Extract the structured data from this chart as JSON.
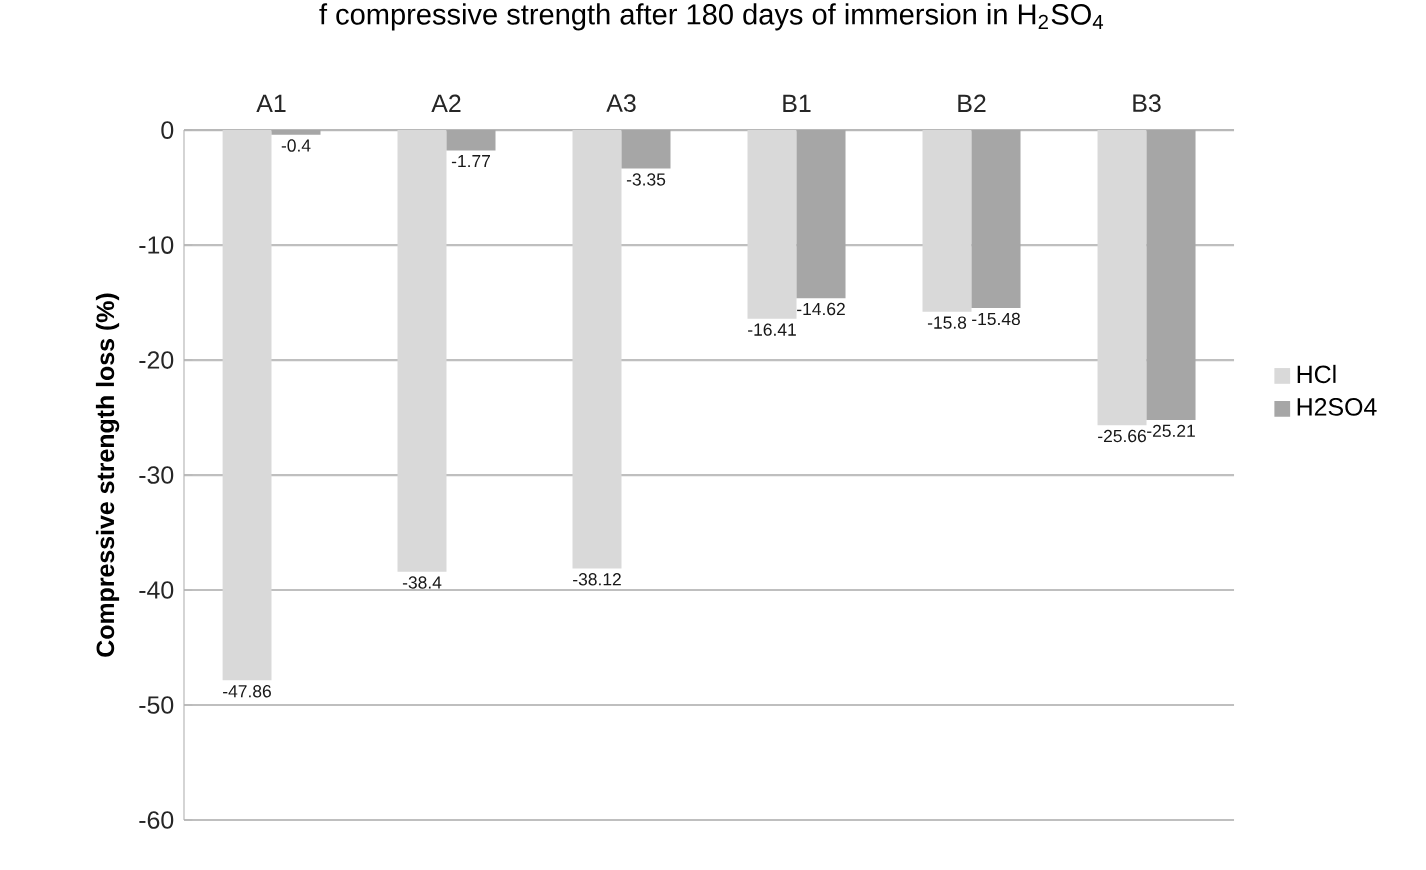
{
  "chart_data": {
    "type": "bar",
    "title": "f compressive strength after 180 days of immersion in H$_{2}$SO$_{4}$",
    "ylabel": "**Compressive strength loss (%)**",
    "categories": [
      "A1",
      "A2",
      "A3",
      "B1",
      "B2",
      "B3"
    ],
    "series": [
      {
        "name": "HCl",
        "color": "#d9d9d9",
        "values": [
          -47.86,
          -38.4,
          -38.12,
          -16.41,
          -15.8,
          -25.66
        ]
      },
      {
        "name": "H2SO4",
        "color": "#a6a6a6",
        "values": [
          -0.4,
          -1.77,
          -3.35,
          -14.62,
          -15.48,
          -25.21
        ]
      }
    ],
    "ylim": [
      -60,
      0
    ],
    "yticks": [
      -60,
      -50,
      -40,
      -30,
      -20,
      -10,
      0
    ],
    "grid": "y",
    "legend": "right",
    "data_labels": true
  }
}
